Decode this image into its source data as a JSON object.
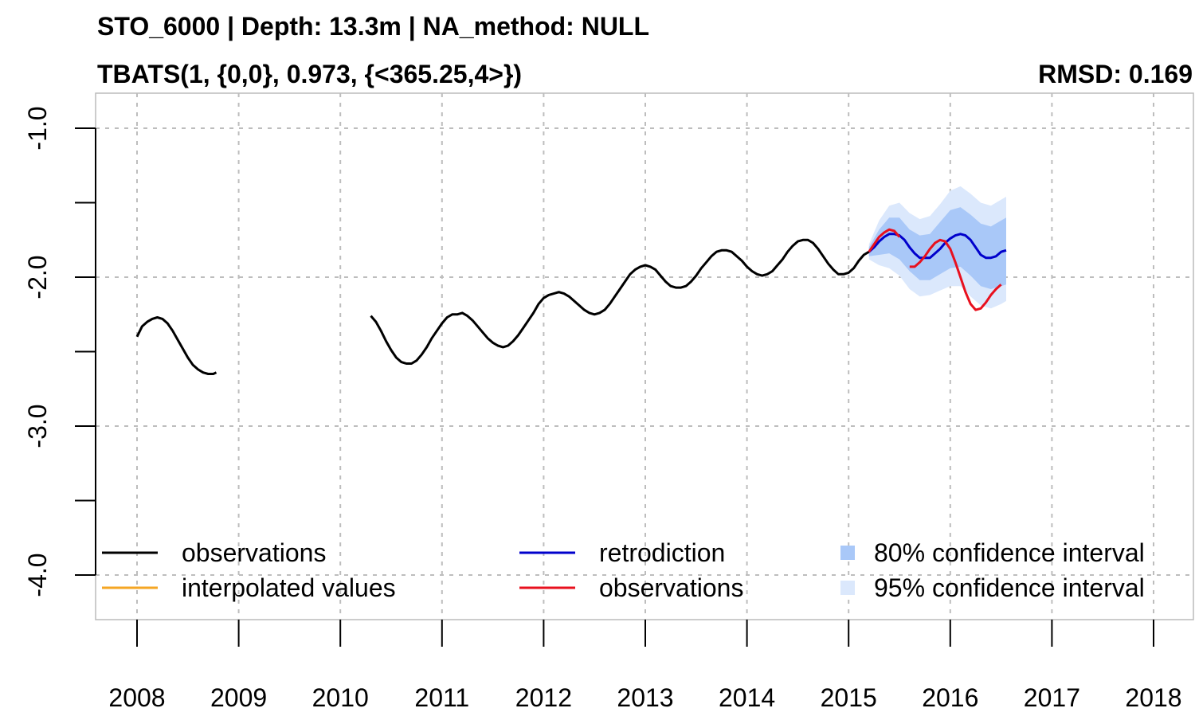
{
  "title": "STO_6000 | Depth: 13.3m | NA_method: NULL",
  "subtitle": "TBATS(1, {0,0}, 0.973, {<365.25,4>})",
  "rmsd_label": "RMSD: 0.169",
  "colors": {
    "observations": "#000000",
    "interpolated": "#f5a623",
    "retrodiction": "#0000cc",
    "observations_test": "#e8101e",
    "ci80": "#a9c8f8",
    "ci95": "#dbe8fc",
    "grid": "#bdbdbd"
  },
  "legend": [
    {
      "label": "observations",
      "type": "line",
      "color_key": "observations"
    },
    {
      "label": "interpolated values",
      "type": "line",
      "color_key": "interpolated"
    },
    {
      "label": "retrodiction",
      "type": "line",
      "color_key": "retrodiction"
    },
    {
      "label": "observations",
      "type": "line",
      "color_key": "observations_test"
    },
    {
      "label": "80% confidence interval",
      "type": "box",
      "color_key": "ci80"
    },
    {
      "label": "95% confidence interval",
      "type": "box",
      "color_key": "ci95"
    }
  ],
  "chart_data": {
    "type": "line",
    "xlim": [
      2008,
      2018
    ],
    "ylim": [
      -4.3,
      -0.7
    ],
    "x_ticks": [
      2008,
      2009,
      2010,
      2011,
      2012,
      2013,
      2014,
      2015,
      2016,
      2017,
      2018
    ],
    "x_tick_labels": [
      "2008",
      "2009",
      "2010",
      "2011",
      "2012",
      "2013",
      "2014",
      "2015",
      "2016",
      "2017",
      "2018"
    ],
    "y_ticks": [
      -1.0,
      -1.5,
      -2.0,
      -2.5,
      -3.0,
      -3.5,
      -4.0
    ],
    "y_tick_labels": [
      "-1.0",
      "",
      "-2.0",
      "",
      "-3.0",
      "",
      "-4.0"
    ],
    "grid": true,
    "legend_position": "bottom",
    "series": [
      {
        "name": "observations",
        "color_key": "observations",
        "segments": [
          [
            [
              2008.0,
              -2.4
            ],
            [
              2008.05,
              -2.33
            ],
            [
              2008.1,
              -2.3
            ],
            [
              2008.15,
              -2.28
            ],
            [
              2008.2,
              -2.27
            ],
            [
              2008.25,
              -2.28
            ],
            [
              2008.3,
              -2.31
            ],
            [
              2008.35,
              -2.36
            ],
            [
              2008.4,
              -2.42
            ],
            [
              2008.45,
              -2.48
            ],
            [
              2008.5,
              -2.54
            ],
            [
              2008.55,
              -2.59
            ],
            [
              2008.6,
              -2.62
            ],
            [
              2008.65,
              -2.64
            ],
            [
              2008.7,
              -2.65
            ],
            [
              2008.75,
              -2.65
            ],
            [
              2008.78,
              -2.64
            ]
          ],
          [
            [
              2010.3,
              -2.26
            ],
            [
              2010.35,
              -2.3
            ],
            [
              2010.4,
              -2.36
            ],
            [
              2010.45,
              -2.43
            ],
            [
              2010.5,
              -2.49
            ],
            [
              2010.55,
              -2.54
            ],
            [
              2010.6,
              -2.57
            ],
            [
              2010.65,
              -2.58
            ],
            [
              2010.7,
              -2.58
            ],
            [
              2010.75,
              -2.56
            ],
            [
              2010.8,
              -2.52
            ],
            [
              2010.85,
              -2.47
            ],
            [
              2010.9,
              -2.41
            ],
            [
              2010.95,
              -2.36
            ],
            [
              2011.0,
              -2.31
            ],
            [
              2011.05,
              -2.27
            ],
            [
              2011.1,
              -2.25
            ],
            [
              2011.15,
              -2.25
            ],
            [
              2011.2,
              -2.24
            ],
            [
              2011.25,
              -2.26
            ],
            [
              2011.3,
              -2.29
            ],
            [
              2011.35,
              -2.33
            ],
            [
              2011.4,
              -2.37
            ],
            [
              2011.45,
              -2.41
            ],
            [
              2011.5,
              -2.44
            ],
            [
              2011.55,
              -2.46
            ],
            [
              2011.6,
              -2.47
            ],
            [
              2011.65,
              -2.46
            ],
            [
              2011.7,
              -2.43
            ],
            [
              2011.75,
              -2.39
            ],
            [
              2011.8,
              -2.34
            ],
            [
              2011.85,
              -2.29
            ],
            [
              2011.9,
              -2.24
            ],
            [
              2011.95,
              -2.18
            ],
            [
              2012.0,
              -2.14
            ],
            [
              2012.05,
              -2.12
            ],
            [
              2012.1,
              -2.11
            ],
            [
              2012.15,
              -2.1
            ],
            [
              2012.2,
              -2.11
            ],
            [
              2012.25,
              -2.13
            ],
            [
              2012.3,
              -2.16
            ],
            [
              2012.35,
              -2.19
            ],
            [
              2012.4,
              -2.22
            ],
            [
              2012.45,
              -2.24
            ],
            [
              2012.5,
              -2.25
            ],
            [
              2012.55,
              -2.24
            ],
            [
              2012.6,
              -2.22
            ],
            [
              2012.65,
              -2.18
            ],
            [
              2012.7,
              -2.13
            ],
            [
              2012.75,
              -2.08
            ],
            [
              2012.8,
              -2.03
            ],
            [
              2012.85,
              -1.98
            ],
            [
              2012.9,
              -1.95
            ],
            [
              2012.95,
              -1.93
            ],
            [
              2013.0,
              -1.92
            ],
            [
              2013.05,
              -1.93
            ],
            [
              2013.1,
              -1.95
            ],
            [
              2013.15,
              -1.99
            ],
            [
              2013.2,
              -2.03
            ],
            [
              2013.25,
              -2.06
            ],
            [
              2013.3,
              -2.07
            ],
            [
              2013.35,
              -2.07
            ],
            [
              2013.4,
              -2.06
            ],
            [
              2013.45,
              -2.03
            ],
            [
              2013.5,
              -1.99
            ],
            [
              2013.55,
              -1.94
            ],
            [
              2013.6,
              -1.9
            ],
            [
              2013.65,
              -1.86
            ],
            [
              2013.7,
              -1.83
            ],
            [
              2013.75,
              -1.82
            ],
            [
              2013.8,
              -1.82
            ],
            [
              2013.85,
              -1.83
            ],
            [
              2013.9,
              -1.86
            ],
            [
              2013.95,
              -1.89
            ],
            [
              2014.0,
              -1.93
            ],
            [
              2014.05,
              -1.96
            ],
            [
              2014.1,
              -1.98
            ],
            [
              2014.15,
              -1.99
            ],
            [
              2014.2,
              -1.98
            ],
            [
              2014.25,
              -1.96
            ],
            [
              2014.3,
              -1.92
            ],
            [
              2014.35,
              -1.88
            ],
            [
              2014.4,
              -1.83
            ],
            [
              2014.45,
              -1.79
            ],
            [
              2014.5,
              -1.76
            ],
            [
              2014.55,
              -1.75
            ],
            [
              2014.6,
              -1.75
            ],
            [
              2014.65,
              -1.77
            ],
            [
              2014.7,
              -1.81
            ],
            [
              2014.75,
              -1.86
            ],
            [
              2014.8,
              -1.91
            ],
            [
              2014.85,
              -1.95
            ],
            [
              2014.9,
              -1.98
            ],
            [
              2014.95,
              -1.98
            ],
            [
              2015.0,
              -1.97
            ],
            [
              2015.05,
              -1.94
            ],
            [
              2015.1,
              -1.89
            ],
            [
              2015.15,
              -1.85
            ],
            [
              2015.2,
              -1.83
            ]
          ]
        ]
      },
      {
        "name": "retrodiction",
        "color_key": "retrodiction",
        "segments": [
          [
            [
              2015.2,
              -1.83
            ],
            [
              2015.25,
              -1.8
            ],
            [
              2015.3,
              -1.76
            ],
            [
              2015.35,
              -1.73
            ],
            [
              2015.4,
              -1.71
            ],
            [
              2015.45,
              -1.71
            ],
            [
              2015.5,
              -1.72
            ],
            [
              2015.55,
              -1.75
            ],
            [
              2015.6,
              -1.8
            ],
            [
              2015.65,
              -1.84
            ],
            [
              2015.7,
              -1.87
            ],
            [
              2015.75,
              -1.87
            ],
            [
              2015.8,
              -1.87
            ],
            [
              2015.85,
              -1.84
            ],
            [
              2015.9,
              -1.81
            ],
            [
              2015.95,
              -1.77
            ],
            [
              2016.0,
              -1.74
            ],
            [
              2016.05,
              -1.72
            ],
            [
              2016.1,
              -1.71
            ],
            [
              2016.15,
              -1.72
            ],
            [
              2016.2,
              -1.75
            ],
            [
              2016.25,
              -1.8
            ],
            [
              2016.3,
              -1.85
            ],
            [
              2016.35,
              -1.87
            ],
            [
              2016.4,
              -1.87
            ],
            [
              2016.45,
              -1.86
            ],
            [
              2016.5,
              -1.83
            ],
            [
              2016.55,
              -1.82
            ]
          ]
        ]
      },
      {
        "name": "observations",
        "color_key": "observations_test",
        "segments": [
          [
            [
              2015.2,
              -1.83
            ],
            [
              2015.25,
              -1.78
            ],
            [
              2015.3,
              -1.73
            ],
            [
              2015.35,
              -1.7
            ],
            [
              2015.4,
              -1.68
            ],
            [
              2015.45,
              -1.69
            ],
            [
              2015.5,
              -1.73
            ]
          ],
          [
            [
              2015.6,
              -1.93
            ],
            [
              2015.65,
              -1.93
            ],
            [
              2015.7,
              -1.9
            ],
            [
              2015.75,
              -1.86
            ],
            [
              2015.8,
              -1.81
            ],
            [
              2015.85,
              -1.77
            ],
            [
              2015.9,
              -1.75
            ],
            [
              2015.95,
              -1.76
            ],
            [
              2016.0,
              -1.81
            ],
            [
              2016.05,
              -1.9
            ],
            [
              2016.1,
              -2.0
            ],
            [
              2016.15,
              -2.1
            ],
            [
              2016.2,
              -2.18
            ],
            [
              2016.25,
              -2.22
            ],
            [
              2016.3,
              -2.21
            ],
            [
              2016.35,
              -2.17
            ],
            [
              2016.4,
              -2.12
            ],
            [
              2016.45,
              -2.08
            ],
            [
              2016.5,
              -2.05
            ]
          ]
        ]
      }
    ],
    "ci80": {
      "x": [
        2015.2,
        2015.3,
        2015.4,
        2015.5,
        2015.6,
        2015.7,
        2015.8,
        2015.9,
        2016.0,
        2016.1,
        2016.2,
        2016.3,
        2016.4,
        2016.5,
        2016.55
      ],
      "lower": [
        -1.86,
        -1.85,
        -1.84,
        -1.88,
        -1.96,
        -2.02,
        -2.02,
        -1.98,
        -1.94,
        -1.93,
        -1.99,
        -2.06,
        -2.08,
        -2.06,
        -2.05
      ],
      "upper": [
        -1.8,
        -1.68,
        -1.6,
        -1.6,
        -1.68,
        -1.72,
        -1.71,
        -1.63,
        -1.55,
        -1.53,
        -1.58,
        -1.64,
        -1.66,
        -1.62,
        -1.6
      ]
    },
    "ci95": {
      "x": [
        2015.2,
        2015.3,
        2015.4,
        2015.5,
        2015.6,
        2015.7,
        2015.8,
        2015.9,
        2016.0,
        2016.1,
        2016.2,
        2016.3,
        2016.4,
        2016.5,
        2016.55
      ],
      "lower": [
        -1.88,
        -1.92,
        -1.94,
        -1.99,
        -2.08,
        -2.13,
        -2.12,
        -2.09,
        -2.06,
        -2.06,
        -2.13,
        -2.19,
        -2.21,
        -2.18,
        -2.16
      ],
      "upper": [
        -1.78,
        -1.62,
        -1.52,
        -1.5,
        -1.57,
        -1.61,
        -1.59,
        -1.51,
        -1.42,
        -1.39,
        -1.44,
        -1.5,
        -1.52,
        -1.48,
        -1.46
      ]
    }
  }
}
